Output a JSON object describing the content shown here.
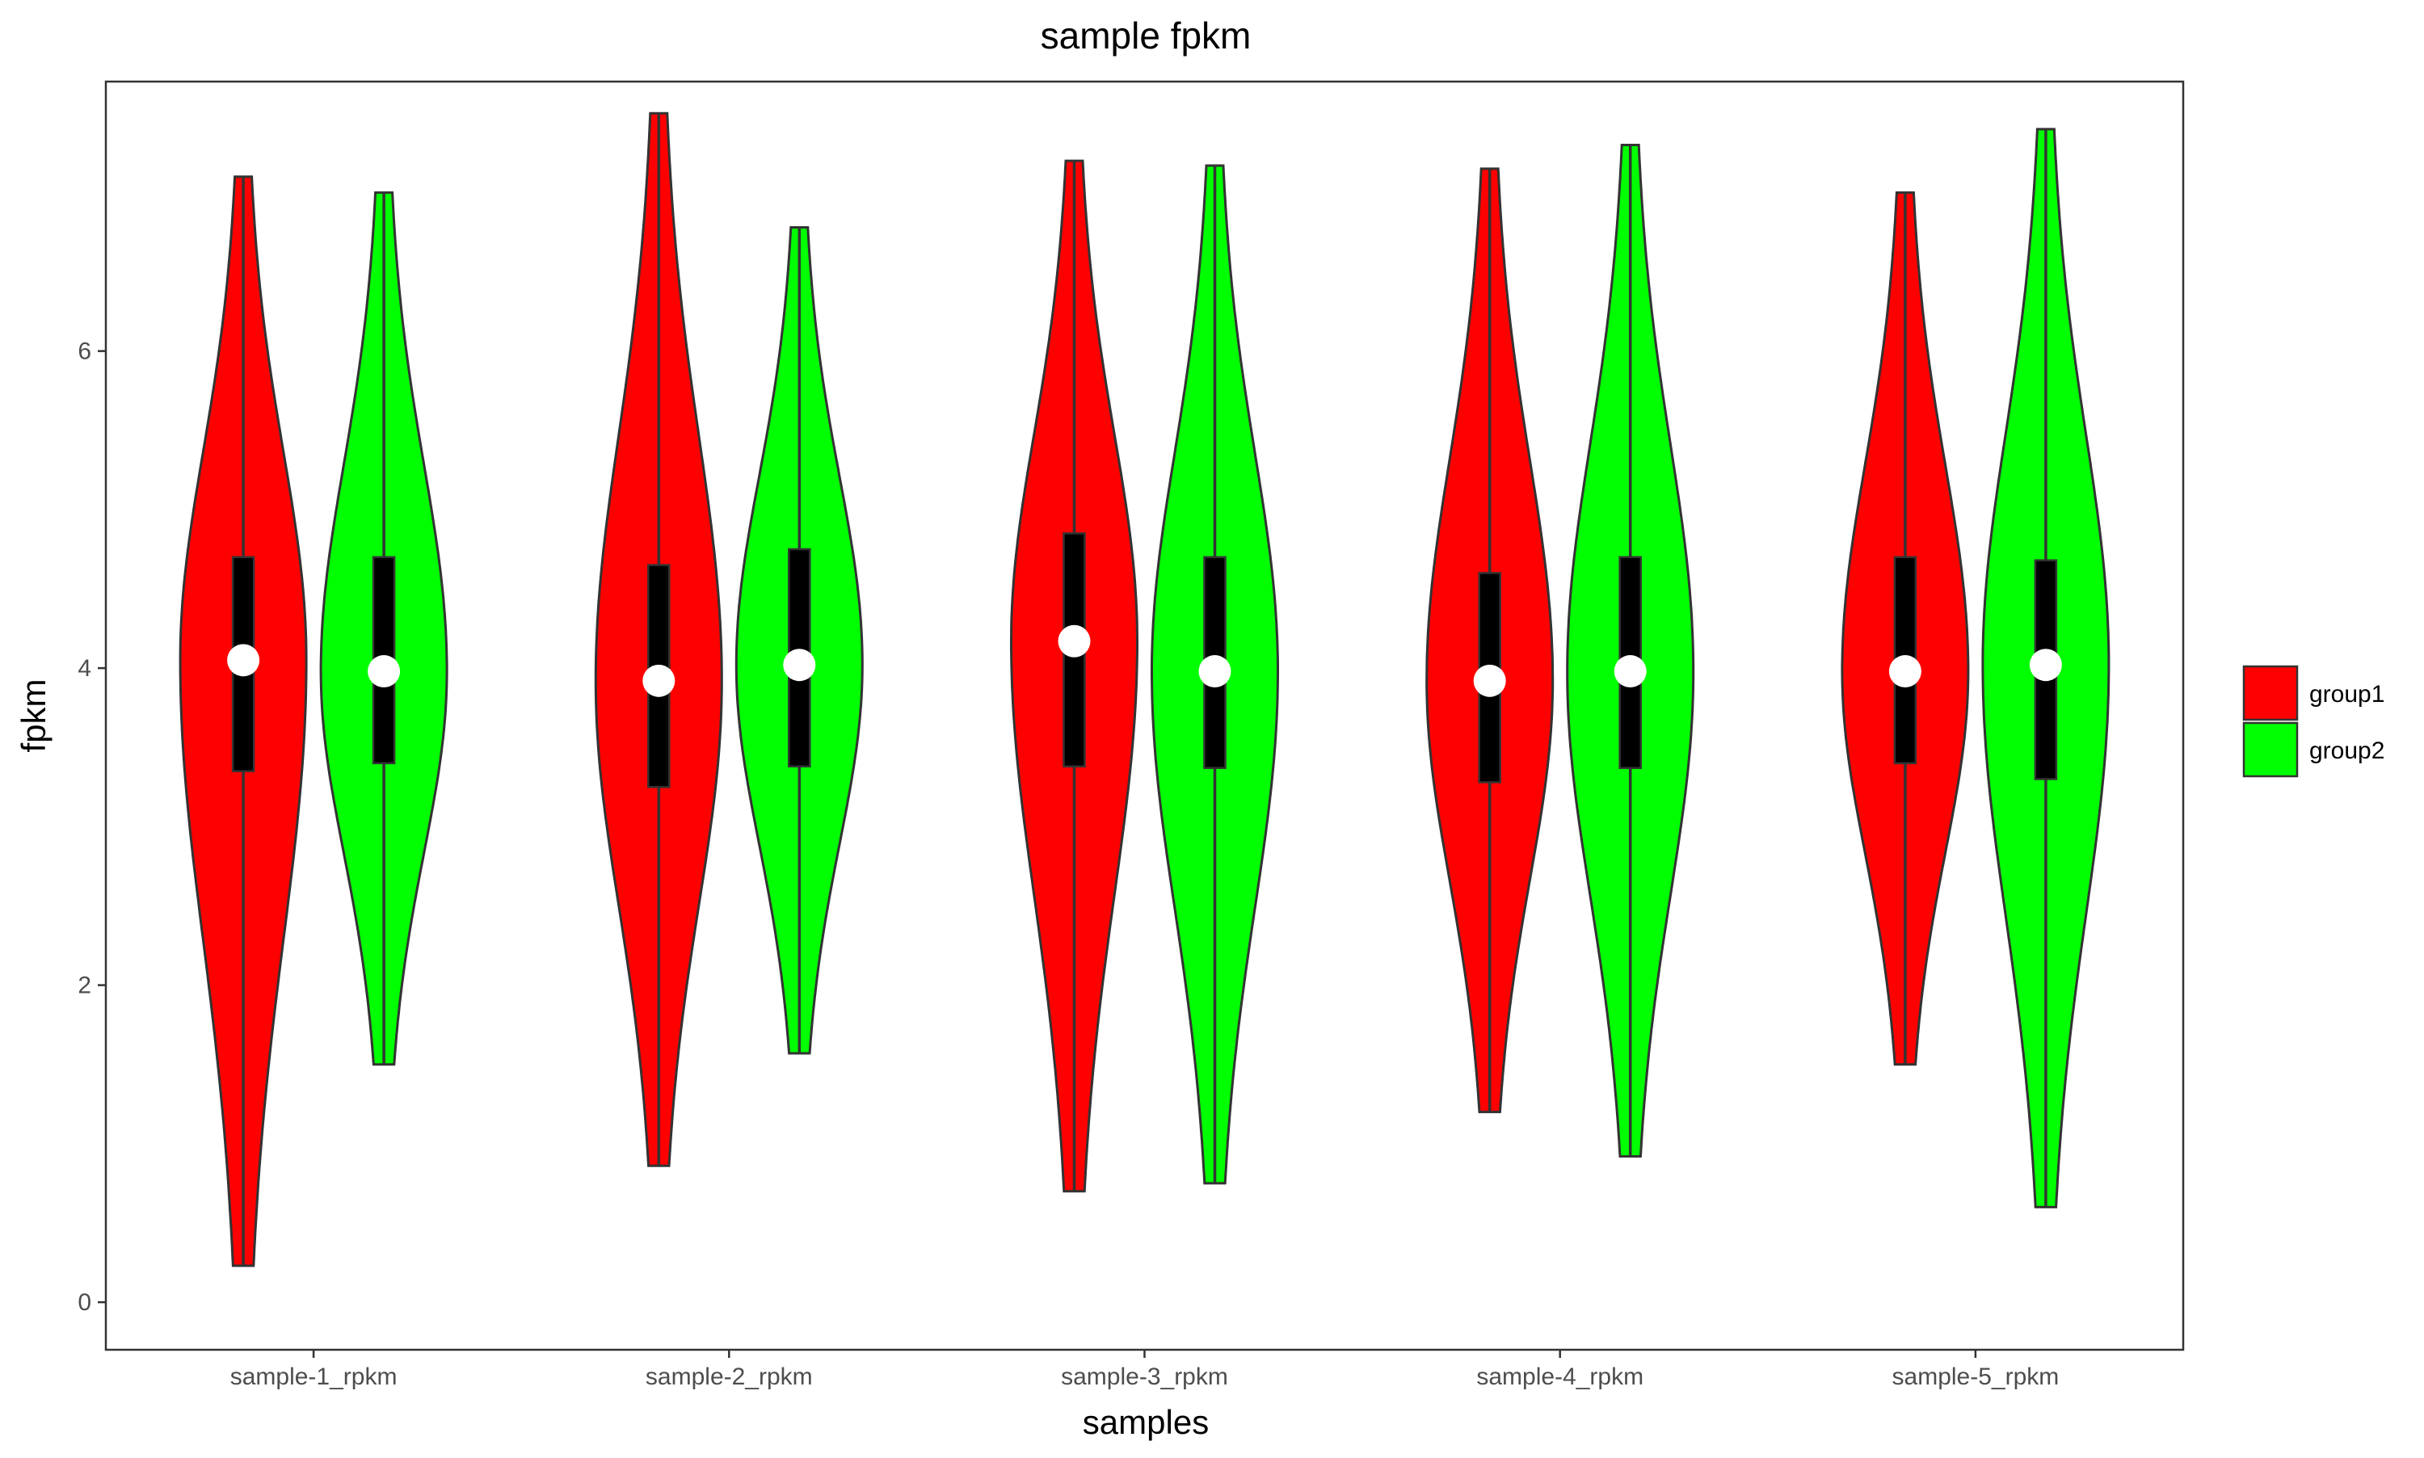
{
  "chart_data": {
    "type": "violin",
    "title": "sample fpkm",
    "xlabel": "samples",
    "ylabel": "fpkm",
    "ylim": [
      -0.3,
      7.7
    ],
    "yticks": [
      0,
      2,
      4,
      6
    ],
    "categories": [
      "sample-1_rpkm",
      "sample-2_rpkm",
      "sample-3_rpkm",
      "sample-4_rpkm",
      "sample-5_rpkm"
    ],
    "grid": false,
    "legend_position": "right",
    "series": [
      {
        "name": "group1",
        "color": "#ff0000",
        "stats": [
          {
            "min": 0.23,
            "max": 7.1,
            "q1": 3.35,
            "q3": 4.7,
            "median": 4.05
          },
          {
            "min": 0.86,
            "max": 7.5,
            "q1": 3.25,
            "q3": 4.65,
            "median": 3.92
          },
          {
            "min": 0.7,
            "max": 7.2,
            "q1": 3.38,
            "q3": 4.85,
            "median": 4.17
          },
          {
            "min": 1.2,
            "max": 7.15,
            "q1": 3.28,
            "q3": 4.6,
            "median": 3.92
          },
          {
            "min": 1.5,
            "max": 7.0,
            "q1": 3.4,
            "q3": 4.7,
            "median": 3.98
          }
        ]
      },
      {
        "name": "group2",
        "color": "#00ff00",
        "stats": [
          {
            "min": 1.5,
            "max": 7.0,
            "q1": 3.4,
            "q3": 4.7,
            "median": 3.98
          },
          {
            "min": 1.57,
            "max": 6.78,
            "q1": 3.38,
            "q3": 4.75,
            "median": 4.02
          },
          {
            "min": 0.75,
            "max": 7.17,
            "q1": 3.37,
            "q3": 4.7,
            "median": 3.98
          },
          {
            "min": 0.92,
            "max": 7.3,
            "q1": 3.37,
            "q3": 4.7,
            "median": 3.98
          },
          {
            "min": 0.6,
            "max": 7.4,
            "q1": 3.3,
            "q3": 4.68,
            "median": 4.02
          }
        ]
      }
    ]
  }
}
